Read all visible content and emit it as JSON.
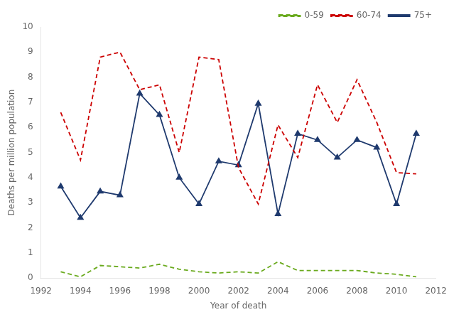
{
  "chart_data": {
    "type": "line",
    "x": [
      1993,
      1994,
      1995,
      1996,
      1997,
      1998,
      1999,
      2000,
      2001,
      2002,
      2003,
      2004,
      2005,
      2006,
      2007,
      2008,
      2009,
      2010,
      2011
    ],
    "series": [
      {
        "name": "0-59",
        "color": "#6aaa1e",
        "line_style": "dashed",
        "marker": "none",
        "values": [
          0.25,
          0.05,
          0.5,
          0.45,
          0.4,
          0.55,
          0.35,
          0.25,
          0.2,
          0.25,
          0.2,
          0.65,
          0.3,
          0.3,
          0.3,
          0.3,
          0.2,
          0.15,
          0.05
        ]
      },
      {
        "name": "60-74",
        "color": "#cc0000",
        "line_style": "dashed",
        "marker": "none",
        "values": [
          6.6,
          4.7,
          8.8,
          9.0,
          7.5,
          7.7,
          5.0,
          8.8,
          8.7,
          4.4,
          2.95,
          6.1,
          4.8,
          7.7,
          6.2,
          7.9,
          6.2,
          4.2,
          4.15
        ]
      },
      {
        "name": "75+",
        "color": "#1f3a6e",
        "line_style": "solid",
        "marker": "triangle",
        "values": [
          3.65,
          2.4,
          3.45,
          3.3,
          7.35,
          6.5,
          4.0,
          2.95,
          4.65,
          4.5,
          6.95,
          2.55,
          5.75,
          5.5,
          4.8,
          5.5,
          5.2,
          2.95,
          5.75
        ]
      }
    ],
    "x_label": "Year of death",
    "y_label": "Deaths per million population",
    "xlim": [
      1992,
      2012
    ],
    "xticks": [
      1992,
      1994,
      1996,
      1998,
      2000,
      2002,
      2004,
      2006,
      2008,
      2010,
      2012
    ],
    "ylim": [
      0,
      10
    ],
    "yticks": [
      0,
      1,
      2,
      3,
      4,
      5,
      6,
      7,
      8,
      9,
      10
    ],
    "grid": false,
    "legend": "upper right"
  }
}
